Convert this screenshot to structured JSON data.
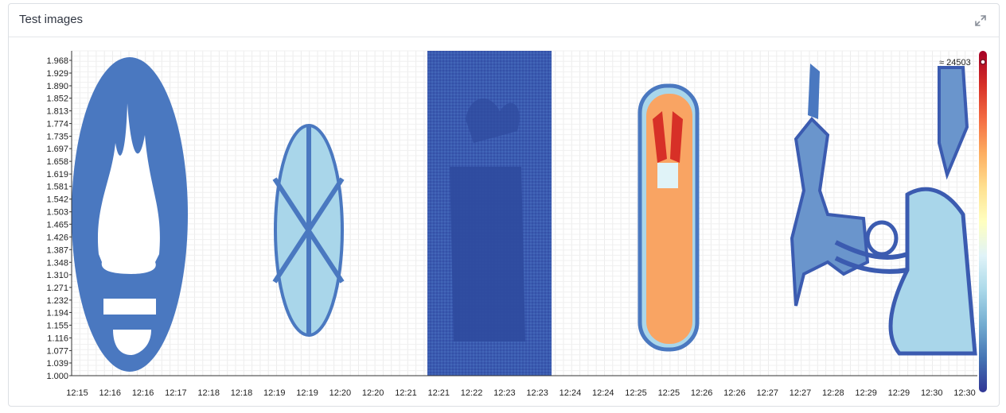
{
  "panel": {
    "title": "Test images",
    "expand_icon": "expand-icon"
  },
  "chart_data": {
    "type": "heatmap",
    "title": "",
    "xlabel": "",
    "ylabel": "",
    "x_ticks": [
      "12:15",
      "12:16",
      "12:16",
      "12:17",
      "12:18",
      "12:18",
      "12:19",
      "12:19",
      "12:20",
      "12:20",
      "12:21",
      "12:21",
      "12:22",
      "12:23",
      "12:23",
      "12:24",
      "12:24",
      "12:25",
      "12:25",
      "12:26",
      "12:26",
      "12:27",
      "12:27",
      "12:28",
      "12:29",
      "12:29",
      "12:30",
      "12:30"
    ],
    "y_ticks": [
      "1.968",
      "1.929",
      "1.890",
      "1.852",
      "1.813",
      "1.774",
      "1.735",
      "1.697",
      "1.658",
      "1.619",
      "1.581",
      "1.542",
      "1.503",
      "1.465",
      "1.426",
      "1.387",
      "1.348",
      "1.310",
      "1.271",
      "1.232",
      "1.194",
      "1.155",
      "1.116",
      "1.077",
      "1.039",
      "1.000"
    ],
    "ylim": [
      1.0,
      2.0
    ],
    "grid": true,
    "colorscale": [
      "#313695",
      "#4575b4",
      "#74add1",
      "#abd9e9",
      "#e0f3f8",
      "#ffffbf",
      "#fee090",
      "#fdae61",
      "#f46d43",
      "#d73027",
      "#a50026"
    ],
    "legend_max_label": "≈ 24503",
    "legend_position": "right",
    "images": [
      "flame-logo",
      "snowflake",
      "gift-box",
      "fluffy-figure",
      "sleigh-reindeer"
    ]
  }
}
